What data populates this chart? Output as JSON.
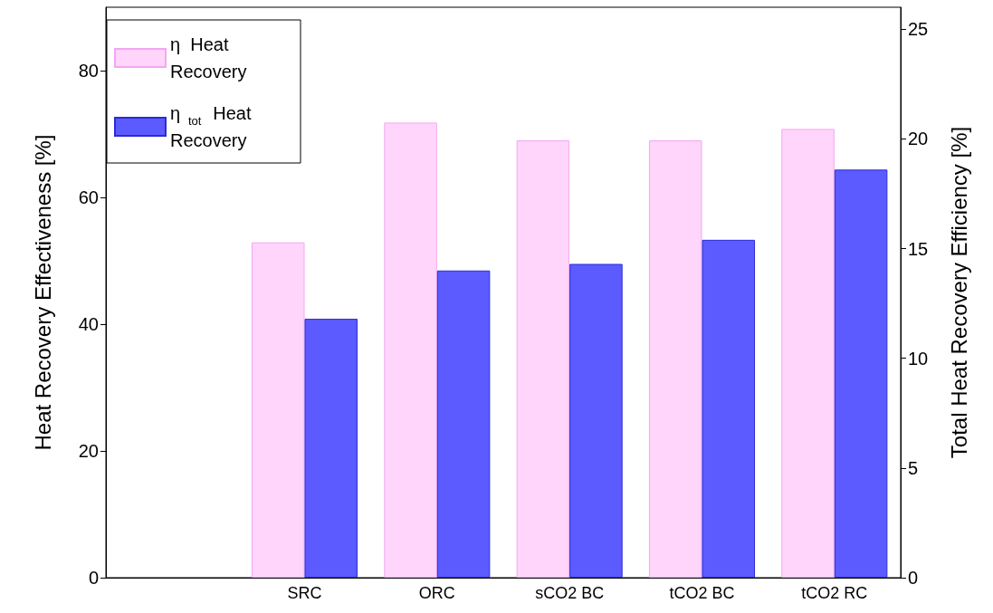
{
  "chart_data": {
    "type": "bar",
    "ylabel": "Heat Recovery Effectiveness [%]",
    "y2label": "Total Heat Recovery Efficiency [%]",
    "categories": [
      null,
      "SRC",
      "ORC",
      "sCO2 BC",
      "tCO2 BC",
      "tCO2 RC"
    ],
    "series": [
      {
        "name": "η  Heat Recovery",
        "color": "#ffd5fb",
        "values": [
          null,
          52.9,
          71.8,
          69.0,
          69.0,
          70.8
        ]
      },
      {
        "name": "η$_{tot}$ Heat Recovery",
        "color": "#5b5bff",
        "axis": "y2",
        "values": [
          null,
          11.8,
          14.0,
          14.3,
          15.4,
          18.6
        ]
      }
    ],
    "ylim": [
      0,
      90
    ],
    "yticks": [
      0,
      20,
      40,
      60,
      80
    ],
    "y2lim": [
      0,
      26
    ],
    "y2ticks": [
      0,
      5,
      10,
      15,
      20,
      25
    ],
    "grid": false,
    "legend": "top left"
  }
}
